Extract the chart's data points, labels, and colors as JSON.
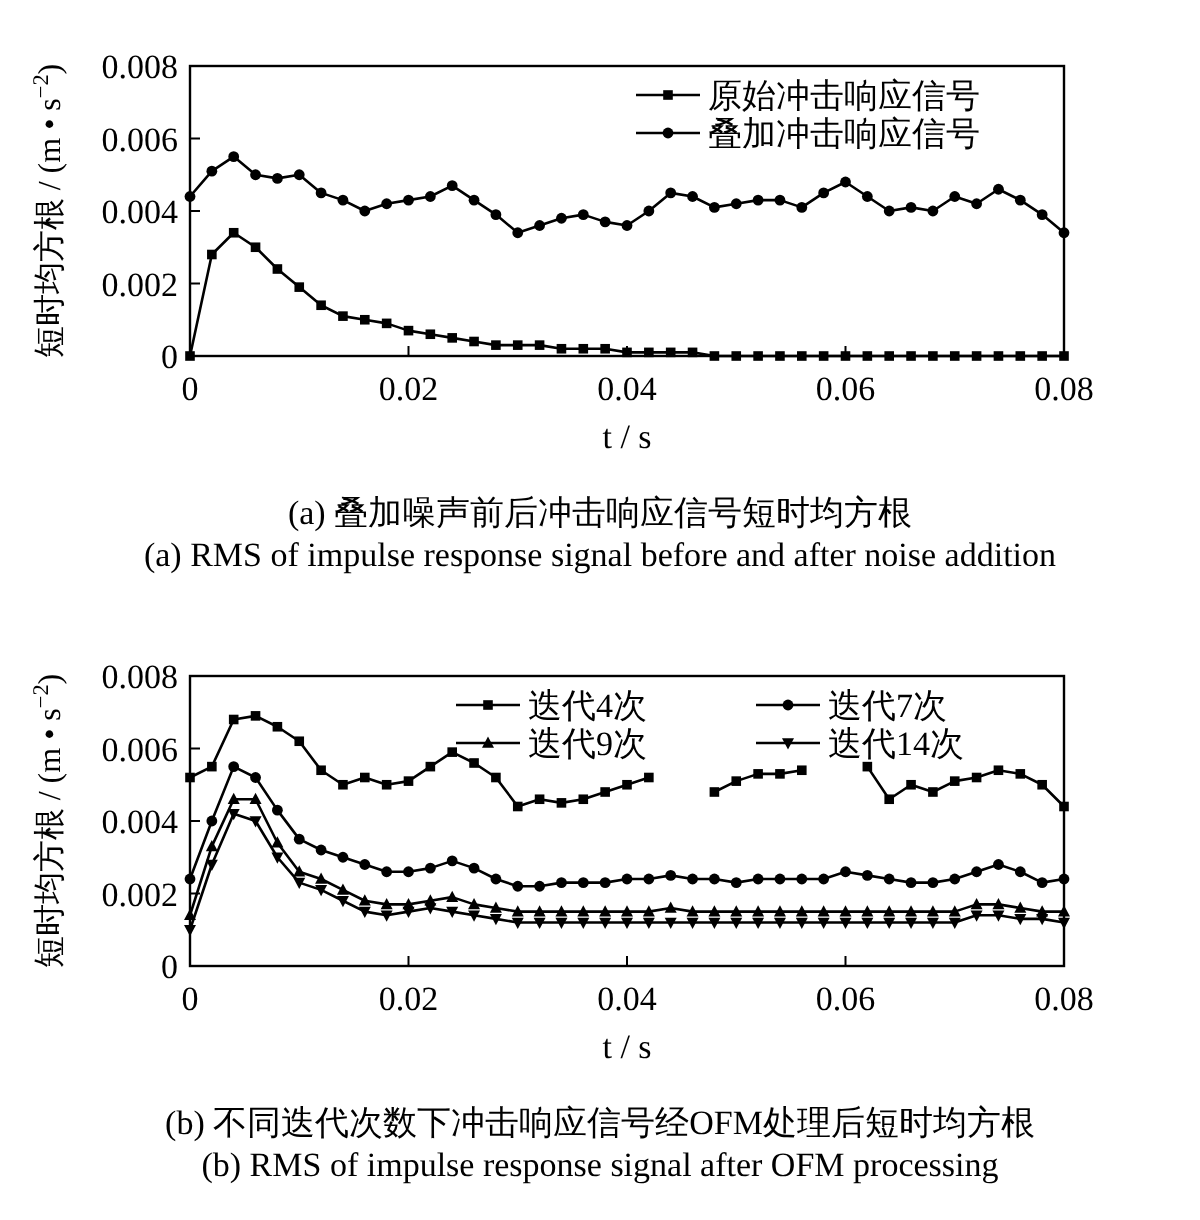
{
  "chart_data": [
    {
      "type": "line",
      "xlabel": "t / s",
      "ylabel": "短时均方根 / (m • s$^{−2}$)",
      "x": [
        0,
        0.002,
        0.004,
        0.006,
        0.008,
        0.01,
        0.012,
        0.014,
        0.016,
        0.018,
        0.02,
        0.022,
        0.024,
        0.026,
        0.028,
        0.03,
        0.032,
        0.034,
        0.036,
        0.038,
        0.04,
        0.042,
        0.044,
        0.046,
        0.048,
        0.05,
        0.052,
        0.054,
        0.056,
        0.058,
        0.06,
        0.062,
        0.064,
        0.066,
        0.068,
        0.07,
        0.072,
        0.074,
        0.076,
        0.078,
        0.08
      ],
      "series": [
        {
          "name": "原始冲击响应信号",
          "color": "#000000",
          "marker": "square",
          "values": [
            0,
            0.0028,
            0.0034,
            0.003,
            0.0024,
            0.0019,
            0.0014,
            0.0011,
            0.001,
            0.0009,
            0.0007,
            0.0006,
            0.0005,
            0.0004,
            0.0003,
            0.0003,
            0.0003,
            0.0002,
            0.0002,
            0.0002,
            0.0001,
            0.0001,
            0.0001,
            0.0001,
            0,
            0,
            0,
            0,
            0,
            0,
            0,
            0,
            0,
            0,
            0,
            0,
            0,
            0,
            0,
            0,
            0
          ]
        },
        {
          "name": "叠加冲击响应信号",
          "color": "#000000",
          "marker": "circle",
          "values": [
            0.0044,
            0.0051,
            0.0055,
            0.005,
            0.0049,
            0.005,
            0.0045,
            0.0043,
            0.004,
            0.0042,
            0.0043,
            0.0044,
            0.0047,
            0.0043,
            0.0039,
            0.0034,
            0.0036,
            0.0038,
            0.0039,
            0.0037,
            0.0036,
            0.004,
            0.0045,
            0.0044,
            0.0041,
            0.0042,
            0.0043,
            0.0043,
            0.0041,
            0.0045,
            0.0048,
            0.0044,
            0.004,
            0.0041,
            0.004,
            0.0044,
            0.0042,
            0.0046,
            0.0043,
            0.0039,
            0.0034
          ]
        }
      ],
      "xlim": [
        0,
        0.08
      ],
      "xticks": [
        0,
        0.02,
        0.04,
        0.06,
        0.08
      ],
      "ylim": [
        0,
        0.008
      ],
      "yticks": [
        0,
        0.002,
        0.004,
        0.006,
        0.008
      ],
      "legend": "top right",
      "grid": false,
      "line_style": "solid",
      "annotations": [
        "(a)  叠加噪声前后冲击响应信号短时均方根",
        "(a)  RMS of impulse response signal before and after noise addition"
      ]
    },
    {
      "type": "line",
      "xlabel": "t / s",
      "ylabel": "短时均方根 / (m • s$^{−2}$)",
      "x": [
        0,
        0.002,
        0.004,
        0.006,
        0.008,
        0.01,
        0.012,
        0.014,
        0.016,
        0.018,
        0.02,
        0.022,
        0.024,
        0.026,
        0.028,
        0.03,
        0.032,
        0.034,
        0.036,
        0.038,
        0.04,
        0.042,
        0.044,
        0.046,
        0.048,
        0.05,
        0.052,
        0.054,
        0.056,
        0.058,
        0.06,
        0.062,
        0.064,
        0.066,
        0.068,
        0.07,
        0.072,
        0.074,
        0.076,
        0.078,
        0.08
      ],
      "series": [
        {
          "name": "迭代4次",
          "color": "#000000",
          "marker": "square",
          "values": [
            0.0052,
            0.0055,
            0.0068,
            0.0069,
            0.0066,
            0.0062,
            0.0054,
            0.005,
            0.0052,
            0.005,
            0.0051,
            0.0055,
            0.0059,
            0.0056,
            0.0052,
            0.0044,
            0.0046,
            0.0045,
            0.0046,
            0.0048,
            0.005,
            0.0052,
            null,
            null,
            0.0048,
            0.0051,
            0.0053,
            0.0053,
            0.0054,
            null,
            null,
            0.0055,
            0.0046,
            0.005,
            0.0048,
            0.0051,
            0.0052,
            0.0054,
            0.0053,
            0.005,
            0.0044
          ]
        },
        {
          "name": "迭代7次",
          "color": "#000000",
          "marker": "circle",
          "values": [
            0.0024,
            0.004,
            0.0055,
            0.0052,
            0.0043,
            0.0035,
            0.0032,
            0.003,
            0.0028,
            0.0026,
            0.0026,
            0.0027,
            0.0029,
            0.0027,
            0.0024,
            0.0022,
            0.0022,
            0.0023,
            0.0023,
            0.0023,
            0.0024,
            0.0024,
            0.0025,
            0.0024,
            0.0024,
            0.0023,
            0.0024,
            0.0024,
            0.0024,
            0.0024,
            0.0026,
            0.0025,
            0.0024,
            0.0023,
            0.0023,
            0.0024,
            0.0026,
            0.0028,
            0.0026,
            0.0023,
            0.0024
          ]
        },
        {
          "name": "迭代9次",
          "color": "#000000",
          "marker": "triangle",
          "values": [
            0.0014,
            0.0033,
            0.0046,
            0.0046,
            0.0034,
            0.0026,
            0.0024,
            0.0021,
            0.0018,
            0.0017,
            0.0017,
            0.0018,
            0.0019,
            0.0017,
            0.0016,
            0.0015,
            0.0015,
            0.0015,
            0.0015,
            0.0015,
            0.0015,
            0.0015,
            0.0016,
            0.0015,
            0.0015,
            0.0015,
            0.0015,
            0.0015,
            0.0015,
            0.0015,
            0.0015,
            0.0015,
            0.0015,
            0.0015,
            0.0015,
            0.0015,
            0.0017,
            0.0017,
            0.0016,
            0.0015,
            0.0015
          ]
        },
        {
          "name": "迭代14次",
          "color": "#000000",
          "marker": "triangle-down",
          "values": [
            0.001,
            0.0028,
            0.0042,
            0.004,
            0.003,
            0.0023,
            0.0021,
            0.0018,
            0.0015,
            0.0014,
            0.0015,
            0.0016,
            0.0015,
            0.0014,
            0.0013,
            0.0012,
            0.0012,
            0.0012,
            0.0012,
            0.0012,
            0.0012,
            0.0012,
            0.0012,
            0.0012,
            0.0012,
            0.0012,
            0.0012,
            0.0012,
            0.0012,
            0.0012,
            0.0012,
            0.0012,
            0.0012,
            0.0012,
            0.0012,
            0.0012,
            0.0014,
            0.0014,
            0.0013,
            0.0013,
            0.0012
          ]
        }
      ],
      "xlim": [
        0,
        0.08
      ],
      "xticks": [
        0,
        0.02,
        0.04,
        0.06,
        0.08
      ],
      "ylim": [
        0,
        0.008
      ],
      "yticks": [
        0,
        0.002,
        0.004,
        0.006,
        0.008
      ],
      "legend": "top right",
      "grid": false,
      "line_style": "solid",
      "annotations": [
        "(b)  不同迭代次数下冲击响应信号经OFM处理后短时均方根",
        "(b)  RMS of impulse response signal after OFM processing"
      ]
    }
  ]
}
